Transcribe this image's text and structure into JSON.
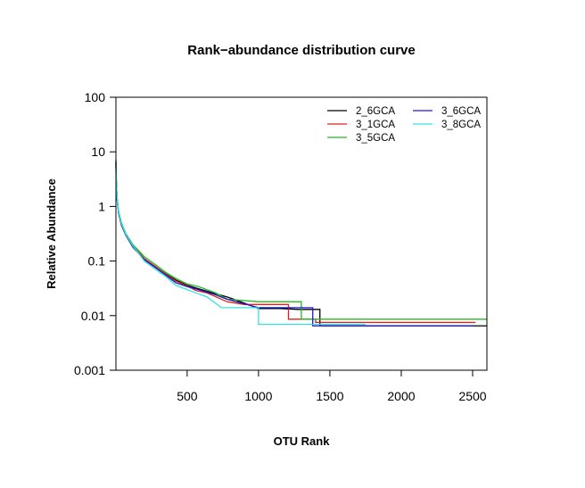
{
  "chart_data": {
    "type": "line",
    "title": "Rank−abundance distribution curve",
    "xlabel": "OTU Rank",
    "ylabel": "Relative Abundance",
    "xlim": [
      1,
      2600
    ],
    "ylim": [
      0.001,
      100
    ],
    "y_scale": "log",
    "x_ticks": [
      500,
      1000,
      1500,
      2000,
      2500
    ],
    "y_ticks": [
      100,
      10,
      1,
      0.1,
      0.01,
      0.001
    ],
    "y_tick_labels": [
      "100",
      "10",
      "1",
      "0.1",
      "0.01",
      "0.001"
    ],
    "grid": false,
    "legend_position": "top-right",
    "series": [
      {
        "name": "2_6GCA",
        "color": "#000000",
        "points": [
          [
            1,
            6.5
          ],
          [
            2,
            4.0
          ],
          [
            5,
            2.2
          ],
          [
            10,
            1.3
          ],
          [
            20,
            0.75
          ],
          [
            40,
            0.45
          ],
          [
            70,
            0.3
          ],
          [
            120,
            0.18
          ],
          [
            200,
            0.11
          ],
          [
            280,
            0.078
          ],
          [
            350,
            0.058
          ],
          [
            420,
            0.045
          ],
          [
            500,
            0.036
          ],
          [
            600,
            0.03
          ],
          [
            680,
            0.026
          ],
          [
            780,
            0.022
          ],
          [
            850,
            0.019
          ],
          [
            1000,
            0.0135
          ],
          [
            1150,
            0.0135
          ],
          [
            1280,
            0.013
          ],
          [
            1430,
            0.013
          ],
          [
            1430,
            0.0065
          ],
          [
            2600,
            0.0065
          ]
        ]
      },
      {
        "name": "3_1GCA",
        "color": "#df2020",
        "points": [
          [
            1,
            6.8
          ],
          [
            2,
            4.2
          ],
          [
            5,
            2.3
          ],
          [
            10,
            1.35
          ],
          [
            20,
            0.78
          ],
          [
            40,
            0.47
          ],
          [
            70,
            0.3
          ],
          [
            120,
            0.19
          ],
          [
            200,
            0.11
          ],
          [
            280,
            0.079
          ],
          [
            350,
            0.057
          ],
          [
            420,
            0.043
          ],
          [
            500,
            0.035
          ],
          [
            560,
            0.029
          ],
          [
            640,
            0.026
          ],
          [
            780,
            0.018
          ],
          [
            900,
            0.016
          ],
          [
            1210,
            0.016
          ],
          [
            1210,
            0.0086
          ],
          [
            1400,
            0.0086
          ],
          [
            1400,
            0.0075
          ],
          [
            2520,
            0.0075
          ]
        ]
      },
      {
        "name": "3_5GCA",
        "color": "#22bb22",
        "points": [
          [
            1,
            7.2
          ],
          [
            2,
            4.4
          ],
          [
            5,
            2.4
          ],
          [
            10,
            1.4
          ],
          [
            20,
            0.82
          ],
          [
            40,
            0.5
          ],
          [
            70,
            0.32
          ],
          [
            120,
            0.2
          ],
          [
            200,
            0.12
          ],
          [
            280,
            0.085
          ],
          [
            350,
            0.062
          ],
          [
            420,
            0.048
          ],
          [
            500,
            0.038
          ],
          [
            580,
            0.034
          ],
          [
            700,
            0.026
          ],
          [
            780,
            0.02
          ],
          [
            1000,
            0.018
          ],
          [
            1300,
            0.018
          ],
          [
            1300,
            0.0086
          ],
          [
            2600,
            0.0086
          ]
        ]
      },
      {
        "name": "3_6GCA",
        "color": "#1a1acc",
        "points": [
          [
            1,
            6.6
          ],
          [
            2,
            4.1
          ],
          [
            5,
            2.25
          ],
          [
            10,
            1.3
          ],
          [
            20,
            0.76
          ],
          [
            40,
            0.46
          ],
          [
            70,
            0.3
          ],
          [
            120,
            0.18
          ],
          [
            200,
            0.105
          ],
          [
            280,
            0.075
          ],
          [
            350,
            0.055
          ],
          [
            420,
            0.04
          ],
          [
            500,
            0.034
          ],
          [
            580,
            0.03
          ],
          [
            680,
            0.025
          ],
          [
            780,
            0.02
          ],
          [
            1000,
            0.014
          ],
          [
            1380,
            0.014
          ],
          [
            1380,
            0.0065
          ],
          [
            2500,
            0.0065
          ]
        ]
      },
      {
        "name": "3_8GCA",
        "color": "#33e3e3",
        "points": [
          [
            1,
            7.0
          ],
          [
            2,
            4.3
          ],
          [
            5,
            2.3
          ],
          [
            10,
            1.35
          ],
          [
            20,
            0.8
          ],
          [
            40,
            0.48
          ],
          [
            70,
            0.31
          ],
          [
            120,
            0.19
          ],
          [
            200,
            0.1
          ],
          [
            280,
            0.07
          ],
          [
            350,
            0.052
          ],
          [
            420,
            0.036
          ],
          [
            500,
            0.03
          ],
          [
            580,
            0.025
          ],
          [
            640,
            0.022
          ],
          [
            740,
            0.014
          ],
          [
            1000,
            0.014
          ],
          [
            1000,
            0.0069
          ],
          [
            1750,
            0.0069
          ]
        ]
      }
    ]
  }
}
